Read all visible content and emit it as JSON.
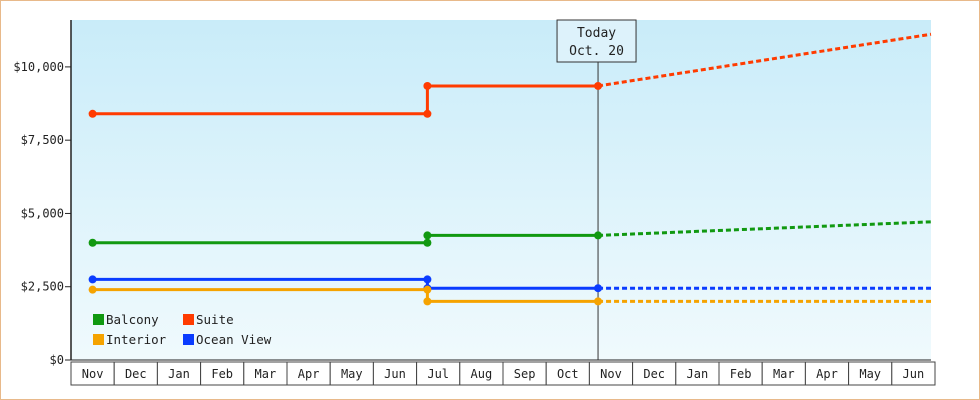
{
  "chart_data": {
    "type": "line",
    "style": "step",
    "x_months": [
      "Nov",
      "Dec",
      "Jan",
      "Feb",
      "Mar",
      "Apr",
      "May",
      "Jun",
      "Jul",
      "Aug",
      "Sep",
      "Oct",
      "Nov",
      "Dec",
      "Jan",
      "Feb",
      "Mar",
      "Apr",
      "May",
      "Jun"
    ],
    "yticks": [
      {
        "value": 0,
        "label": "$0"
      },
      {
        "value": 2500,
        "label": "$2,500"
      },
      {
        "value": 5000,
        "label": "$5,000"
      },
      {
        "value": 7500,
        "label": "$7,500"
      },
      {
        "value": 10000,
        "label": "$10,000"
      }
    ],
    "ylim": [
      0,
      11600
    ],
    "grid": false,
    "legend_position": "bottom-left",
    "today": {
      "label_line1": "Today",
      "label_line2": "Oct. 20"
    },
    "series": [
      {
        "name": "Suite",
        "color": "#ff3b00",
        "steps": [
          {
            "x": 0,
            "y": 8400
          },
          {
            "x": 7.75,
            "y": 8400
          },
          {
            "x": 7.75,
            "y": 9350
          },
          {
            "x": 11.7,
            "y": 9350
          }
        ],
        "markers": [
          {
            "x": 0,
            "y": 8400
          },
          {
            "x": 7.75,
            "y": 8400
          },
          {
            "x": 7.75,
            "y": 9350
          },
          {
            "x": 11.7,
            "y": 9350
          }
        ],
        "forecast": [
          {
            "x": 11.7,
            "y": 9350
          },
          {
            "x": 20,
            "y": 11250
          }
        ]
      },
      {
        "name": "Balcony",
        "color": "#119911",
        "steps": [
          {
            "x": 0,
            "y": 4000
          },
          {
            "x": 7.75,
            "y": 4000
          },
          {
            "x": 7.75,
            "y": 4250
          },
          {
            "x": 11.7,
            "y": 4250
          }
        ],
        "markers": [
          {
            "x": 0,
            "y": 4000
          },
          {
            "x": 7.75,
            "y": 4000
          },
          {
            "x": 7.75,
            "y": 4250
          },
          {
            "x": 11.7,
            "y": 4250
          }
        ],
        "forecast": [
          {
            "x": 11.7,
            "y": 4250
          },
          {
            "x": 20,
            "y": 4750
          }
        ]
      },
      {
        "name": "Ocean View",
        "color": "#0a3cff",
        "steps": [
          {
            "x": 0,
            "y": 2750
          },
          {
            "x": 7.75,
            "y": 2750
          },
          {
            "x": 7.75,
            "y": 2450
          },
          {
            "x": 11.7,
            "y": 2450
          }
        ],
        "markers": [
          {
            "x": 0,
            "y": 2750
          },
          {
            "x": 7.75,
            "y": 2750
          },
          {
            "x": 7.75,
            "y": 2450
          },
          {
            "x": 11.7,
            "y": 2450
          }
        ],
        "forecast": [
          {
            "x": 11.7,
            "y": 2450
          },
          {
            "x": 20,
            "y": 2450
          }
        ]
      },
      {
        "name": "Interior",
        "color": "#f5a300",
        "steps": [
          {
            "x": 0,
            "y": 2400
          },
          {
            "x": 7.75,
            "y": 2400
          },
          {
            "x": 7.75,
            "y": 2000
          },
          {
            "x": 11.7,
            "y": 2000
          }
        ],
        "markers": [
          {
            "x": 0,
            "y": 2400
          },
          {
            "x": 7.75,
            "y": 2400
          },
          {
            "x": 7.75,
            "y": 2000
          },
          {
            "x": 11.7,
            "y": 2000
          }
        ],
        "forecast": [
          {
            "x": 11.7,
            "y": 2000
          },
          {
            "x": 20,
            "y": 2000
          }
        ]
      }
    ],
    "legend_order": [
      "Balcony",
      "Suite",
      "Interior",
      "Ocean View"
    ]
  }
}
